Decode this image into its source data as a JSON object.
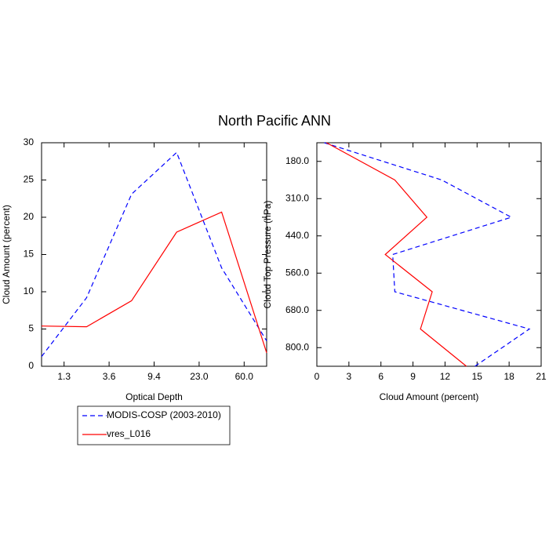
{
  "title": "North Pacific ANN",
  "chart_data": [
    {
      "type": "line",
      "xlabel": "Optical Depth",
      "ylabel": "Cloud Amount (percent)",
      "x": [
        0,
        1,
        2,
        3,
        4,
        5
      ],
      "xlim": [
        0,
        5
      ],
      "xticks": [
        {
          "value": 0.5,
          "label": "1.3"
        },
        {
          "value": 1.5,
          "label": "3.6"
        },
        {
          "value": 2.5,
          "label": "9.4"
        },
        {
          "value": 3.5,
          "label": "23.0"
        },
        {
          "value": 4.5,
          "label": "60.0"
        }
      ],
      "ylim": [
        0,
        30
      ],
      "yticks": [
        0,
        5,
        10,
        15,
        20,
        25,
        30
      ],
      "series": [
        {
          "name": "MODIS-COSP (2003-2010)",
          "color": "#0000ff",
          "dash": true,
          "values": [
            1.3,
            9.2,
            23.1,
            28.7,
            13.2,
            3.4
          ]
        },
        {
          "name": "vres_L016",
          "color": "#ff0000",
          "dash": false,
          "values": [
            5.4,
            5.3,
            8.8,
            18.0,
            20.7,
            1.8
          ]
        }
      ]
    },
    {
      "type": "line",
      "orientation": "horizontal",
      "xlabel": "Cloud Amount (percent)",
      "ylabel": "Cloud Top Pressure (hPa)",
      "y": [
        0,
        1,
        2,
        3,
        4,
        5,
        6
      ],
      "ylim": [
        0,
        6
      ],
      "yticks": [
        {
          "value": 0.5,
          "label": "180.0"
        },
        {
          "value": 1.5,
          "label": "310.0"
        },
        {
          "value": 2.5,
          "label": "440.0"
        },
        {
          "value": 3.5,
          "label": "560.0"
        },
        {
          "value": 4.5,
          "label": "680.0"
        },
        {
          "value": 5.5,
          "label": "800.0"
        }
      ],
      "xlim": [
        0,
        21
      ],
      "xticks": [
        0,
        3,
        6,
        9,
        12,
        15,
        18,
        21
      ],
      "series": [
        {
          "name": "MODIS-COSP (2003-2010)",
          "color": "#0000ff",
          "dash": true,
          "values": [
            0.7,
            11.7,
            18.2,
            7.1,
            7.3,
            19.9,
            14.8
          ]
        },
        {
          "name": "vres_L016",
          "color": "#ff0000",
          "dash": false,
          "values": [
            0.9,
            7.3,
            10.3,
            6.4,
            10.8,
            9.7,
            14.0
          ]
        }
      ]
    }
  ]
}
